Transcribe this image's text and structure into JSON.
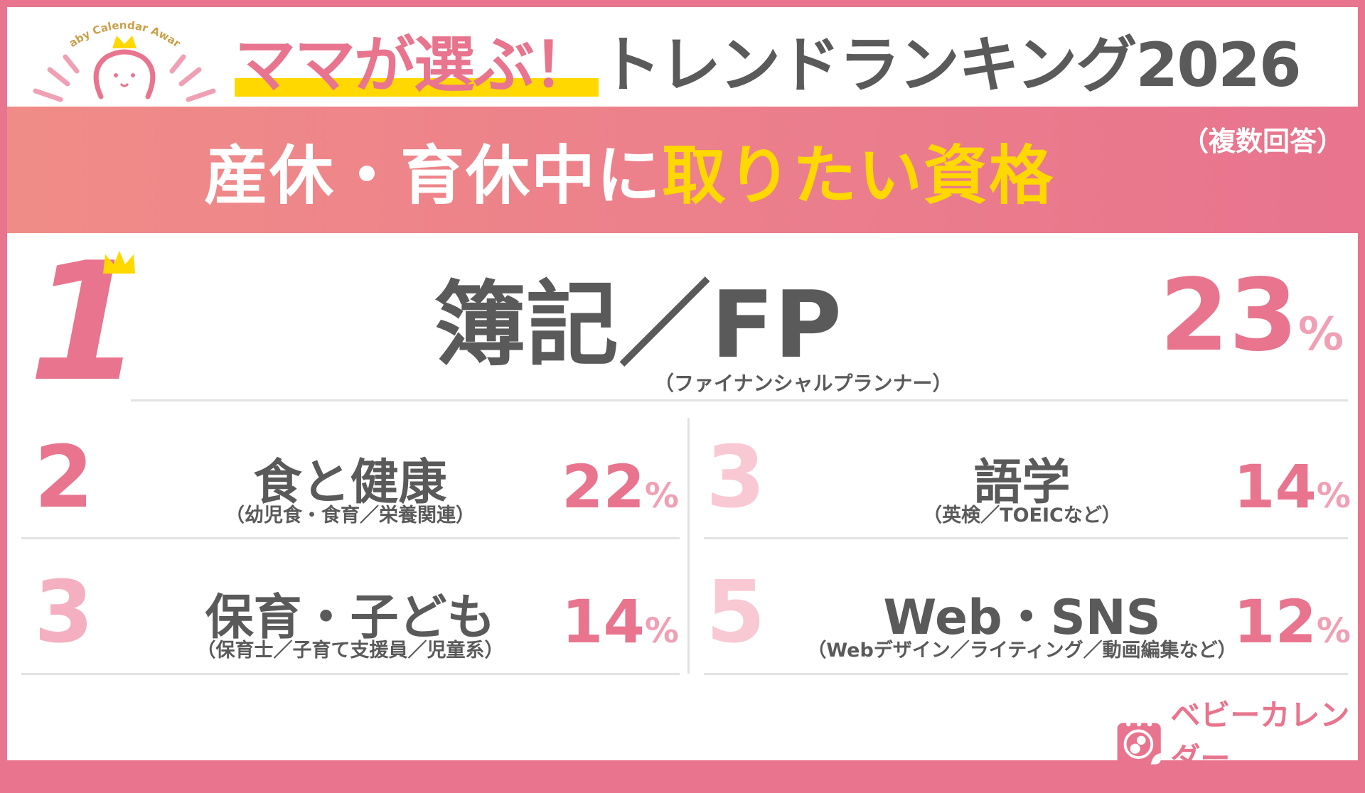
{
  "header": {
    "logo_text": "Baby Calendar Award",
    "title_highlight": "ママが選ぶ！",
    "title_rest": "トレンドランキング2026"
  },
  "band": {
    "prefix": "産休・育休中に",
    "highlight": "取りたい資格",
    "note": "（複数回答）"
  },
  "rankings": [
    {
      "rank": "1",
      "name": "簿記／FP",
      "sub": "（ファイナンシャルプランナー）",
      "pct": "23",
      "unit": "%"
    },
    {
      "rank": "2",
      "name": "食と健康",
      "sub": "（幼児食・食育／栄養関連）",
      "pct": "22",
      "unit": "%"
    },
    {
      "rank": "3",
      "name": "語学",
      "sub": "（英検／TOEICなど）",
      "pct": "14",
      "unit": "%"
    },
    {
      "rank": "3",
      "name": "保育・子ども",
      "sub": "（保育士／子育て支援員／児童系）",
      "pct": "14",
      "unit": "%"
    },
    {
      "rank": "5",
      "name": "Web・SNS",
      "sub": "（Webデザイン／ライティング／動画編集など）",
      "pct": "12",
      "unit": "%"
    }
  ],
  "brand": {
    "name_jp": "ベビーカレンダー",
    "name_en": "Baby Calendar"
  },
  "colors": {
    "pink": "#e8748e",
    "yellow": "#ffd800",
    "gray": "#5a5a5a",
    "light_pink": "#f4b6c4"
  }
}
